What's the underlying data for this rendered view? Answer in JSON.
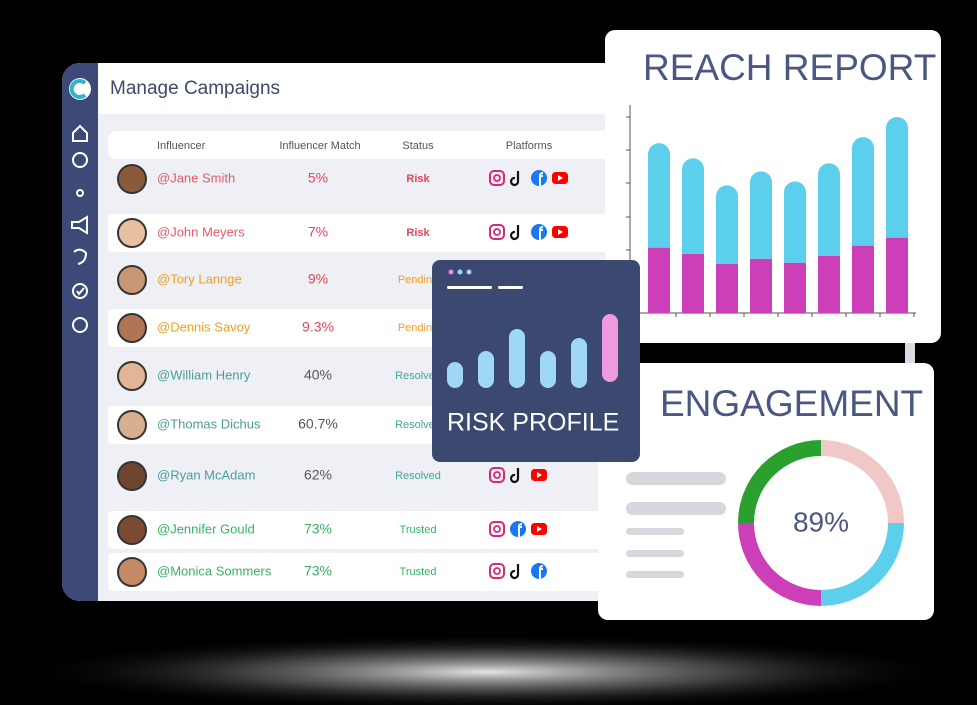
{
  "campaigns": {
    "title": "Manage Campaigns",
    "columns": [
      "Influencer",
      "Influencer Match",
      "Status",
      "Platforms"
    ],
    "rows": [
      [
        "@Jane Smith",
        "5%",
        "Risk"
      ],
      [
        "@John Meyers",
        "7%",
        "Risk"
      ],
      [
        "@Tory Lannge",
        "9%",
        "Pending"
      ],
      [
        "@Dennis Savoy",
        "9.3%",
        "Pending"
      ],
      [
        "@William Henry",
        "40%",
        "Resolved"
      ],
      [
        "@Thomas Dichus",
        "60.7%",
        "Resolved"
      ],
      [
        "@Ryan McAdam",
        "62%",
        "Resolved"
      ],
      [
        "@Jennifer Gould",
        "73%",
        "Trusted"
      ],
      [
        "@Monica Sommers",
        "73%",
        "Trusted"
      ]
    ]
  },
  "chart_data": {
    "type": "stacked-bar",
    "title": "REACH REPORT",
    "ylim": [
      0,
      207
    ],
    "series": [
      {
        "color": "#cc3fb8",
        "values": [
          65,
          59,
          49,
          54,
          50,
          57,
          67,
          75
        ]
      },
      {
        "color": "#5ccfec",
        "values": [
          104,
          95,
          78,
          87,
          81,
          92,
          108,
          120
        ]
      }
    ]
  },
  "risk_profile": {
    "title": "RISK PROFILE"
  },
  "engagement": {
    "title": "ENGAGEMENT",
    "value": "89%"
  }
}
